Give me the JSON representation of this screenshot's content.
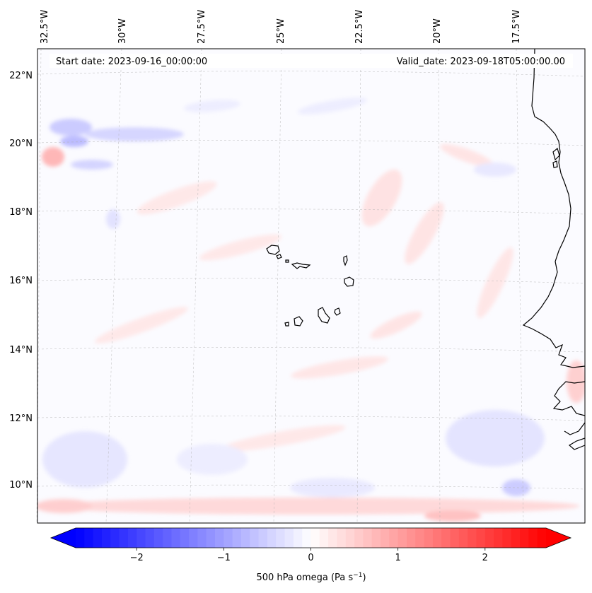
{
  "map": {
    "start_label": "Start date: 2023-09-16_00:00:00",
    "valid_label": "Valid_date: 2023-09-18T05:00:00.00",
    "lon_labels": [
      "32.5°W",
      "30°W",
      "27.5°W",
      "25°W",
      "22.5°W",
      "20°W",
      "17.5°W"
    ],
    "lat_labels": [
      "22°N",
      "20°N",
      "18°N",
      "16°N",
      "14°N",
      "12°N",
      "10°N"
    ],
    "field": "500 hPa omega",
    "colormap": "bwr",
    "colors": {
      "negative": "#0000ff",
      "neutral": "#ffffff",
      "positive": "#ff0000"
    }
  },
  "colorbar": {
    "ticks": [
      "−2",
      "−1",
      "0",
      "1",
      "2"
    ],
    "tick_values": [
      -2,
      -1,
      0,
      1,
      2
    ],
    "range": [
      -2.7,
      2.7
    ],
    "label_main": "500 hPa omega (Pa s",
    "label_sup": "−1",
    "label_end": ")"
  }
}
